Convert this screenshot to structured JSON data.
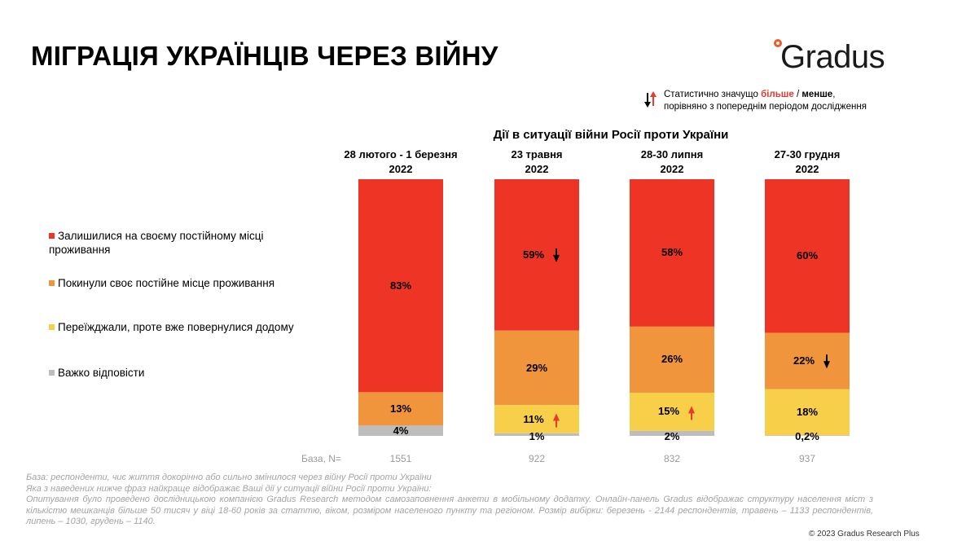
{
  "header": {
    "title": "МІГРАЦІЯ УКРАЇНЦІВ ЧЕРЕЗ ВІЙНУ",
    "logo_text": "Gradus"
  },
  "significance_note": {
    "prefix": "Статистично значущо ",
    "more": "більше",
    "separator": " / ",
    "less": "менше",
    "suffix": ",",
    "line2": "порівняно з попереднім періодом дослідження"
  },
  "colors": {
    "stayed": "#ee3424",
    "left": "#f0953b",
    "returned": "#f8cf48",
    "hard": "#bdbdbd",
    "arrow_up": "#e8392a",
    "arrow_down": "#000000"
  },
  "chart_data": {
    "type": "bar",
    "stacked": true,
    "title": "Дії в ситуації війни Росії проти України",
    "categories": [
      {
        "line1": "28 лютого - 1 березня",
        "line2": "2022"
      },
      {
        "line1": "23 травня",
        "line2": "2022"
      },
      {
        "line1": "28-30 липня",
        "line2": "2022"
      },
      {
        "line1": "27-30 грудня",
        "line2": "2022"
      }
    ],
    "series": [
      {
        "key": "stayed",
        "name": "Залишилися на своєму постійному місці проживання",
        "values": [
          83,
          59,
          58,
          60
        ],
        "labels": [
          "83%",
          "59%",
          "58%",
          "60%"
        ],
        "arrows": [
          "",
          "down",
          "",
          ""
        ]
      },
      {
        "key": "left",
        "name": "Покинули своє постійне місце проживання",
        "values": [
          13,
          29,
          26,
          22
        ],
        "labels": [
          "13%",
          "29%",
          "26%",
          "22%"
        ],
        "arrows": [
          "",
          "",
          "",
          "down"
        ]
      },
      {
        "key": "returned",
        "name": "Переїжджали, проте вже повернулися додому",
        "values": [
          0,
          11,
          15,
          18
        ],
        "labels": [
          "",
          "11%",
          "15%",
          "18%"
        ],
        "arrows": [
          "",
          "up",
          "up",
          ""
        ]
      },
      {
        "key": "hard",
        "name": "Важко відповісти",
        "values": [
          4,
          1,
          2,
          0.2
        ],
        "labels": [
          "4%",
          "1%",
          "2%",
          "0,2%"
        ],
        "arrows": [
          "",
          "",
          "",
          ""
        ]
      }
    ],
    "base_label": "База, N=",
    "base_values": [
      "1551",
      "922",
      "832",
      "937"
    ],
    "ylim": [
      0,
      100
    ]
  },
  "footnote": {
    "line1": "База: респонденти, чиє життя докорінно або сильно змінилося через війну Росії проти України",
    "line2": "Яка з наведених нижче фраз найкраще відображає Ваші дії у ситуації війни Росії проти України:",
    "line3": "Опитування було проведено дослідницькою компанією Gradus Research методом самозаповнення анкети в мобільному додатку. Онлайн-панель Gradus відображає структуру населення міст з кількістю мешканців більше 50 тисяч у віці 18-60 років за статтю, віком, розміром населеного пункту та регіоном. Розмір вибірки: березень - 2144 респондентів, травень – 1133 респондентів, липень – 1030, грудень – 1140."
  },
  "copyright": "© 2023 Gradus Research Plus"
}
